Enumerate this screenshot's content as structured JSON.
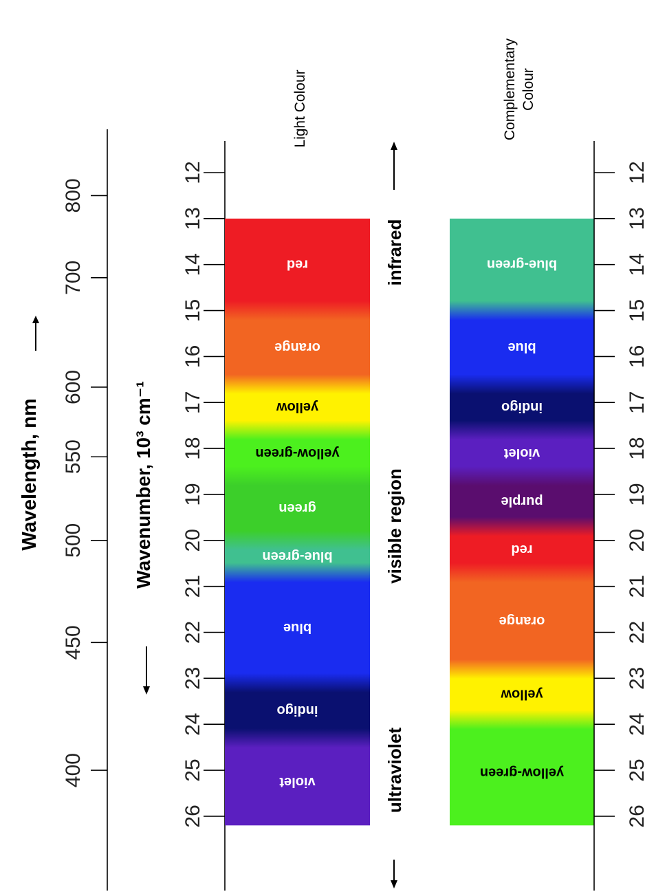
{
  "labels": {
    "wavelength_axis": "Wavelength, nm",
    "wavenumber_axis": "Wavenumber, 10³ cm⁻¹",
    "light_colour": "Light Colour",
    "complementary_line1": "Complementary",
    "complementary_line2": "Colour",
    "infrared": "infrared",
    "visible_region": "visible region",
    "ultraviolet": "ultraviolet"
  },
  "wavelength_ticks": [
    {
      "label": "800",
      "value": 800
    },
    {
      "label": "700",
      "value": 700
    },
    {
      "label": "600",
      "value": 600
    },
    {
      "label": "550",
      "value": 550
    },
    {
      "label": "500",
      "value": 500
    },
    {
      "label": "450",
      "value": 450
    },
    {
      "label": "400",
      "value": 400
    }
  ],
  "wavenumber_ticks": [
    "12",
    "13",
    "14",
    "15",
    "16",
    "17",
    "18",
    "19",
    "20",
    "21",
    "22",
    "23",
    "24",
    "25",
    "26"
  ],
  "light_colours": [
    {
      "name": "red",
      "from": 13.0,
      "to": 15.0,
      "color": "#ee1c24",
      "text": "#ffffff"
    },
    {
      "name": "orange",
      "from": 15.0,
      "to": 16.6,
      "color": "#f26522",
      "text": "#ffffff"
    },
    {
      "name": "yellow",
      "from": 16.6,
      "to": 17.6,
      "color": "#fff200",
      "text": "#000000"
    },
    {
      "name": "yellow-green",
      "from": 17.6,
      "to": 18.6,
      "color": "#4cf01e",
      "text": "#000000"
    },
    {
      "name": "green",
      "from": 18.6,
      "to": 20.0,
      "color": "#3ccf2a",
      "text": "#ffffff"
    },
    {
      "name": "blue-green",
      "from": 20.0,
      "to": 20.7,
      "color": "#40c090",
      "text": "#ffffff"
    },
    {
      "name": "blue",
      "from": 20.7,
      "to": 23.1,
      "color": "#1a2cf0",
      "text": "#ffffff"
    },
    {
      "name": "indigo",
      "from": 23.1,
      "to": 24.3,
      "color": "#0a1070",
      "text": "#ffffff"
    },
    {
      "name": "violet",
      "from": 24.3,
      "to": 26.2,
      "color": "#5b1fc0",
      "text": "#ffffff"
    }
  ],
  "complementary_colours": [
    {
      "name": "blue-green",
      "from": 13.0,
      "to": 15.0,
      "color": "#40c090",
      "text": "#ffffff"
    },
    {
      "name": "blue",
      "from": 15.0,
      "to": 16.6,
      "color": "#1a2cf0",
      "text": "#ffffff"
    },
    {
      "name": "indigo",
      "from": 16.6,
      "to": 17.6,
      "color": "#0a1070",
      "text": "#ffffff"
    },
    {
      "name": "violet",
      "from": 17.6,
      "to": 18.6,
      "color": "#5b1fc0",
      "text": "#ffffff"
    },
    {
      "name": "purple",
      "from": 18.6,
      "to": 19.7,
      "color": "#5a0d6e",
      "text": "#ffffff"
    },
    {
      "name": "red",
      "from": 19.7,
      "to": 20.7,
      "color": "#ee1c24",
      "text": "#ffffff"
    },
    {
      "name": "orange",
      "from": 20.7,
      "to": 22.8,
      "color": "#f26522",
      "text": "#ffffff"
    },
    {
      "name": "yellow",
      "from": 22.8,
      "to": 23.9,
      "color": "#fff200",
      "text": "#000000"
    },
    {
      "name": "yellow-green",
      "from": 23.9,
      "to": 26.2,
      "color": "#4cf01e",
      "text": "#000000"
    }
  ]
}
